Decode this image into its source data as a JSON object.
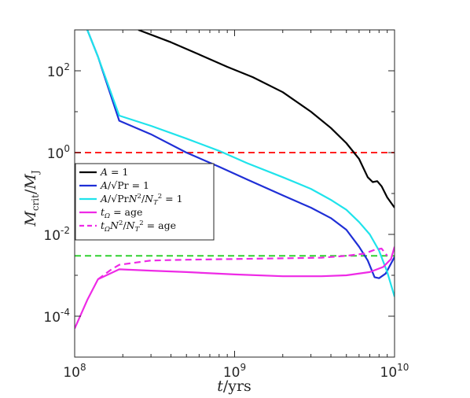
{
  "chart_data": {
    "type": "line",
    "title": "",
    "xlabel": "t/yrs",
    "ylabel": "M_crit/M_J",
    "xscale": "log",
    "yscale": "log",
    "xlim": [
      100000000,
      10000000000
    ],
    "ylim": [
      1e-05,
      1000
    ],
    "xticks": [
      {
        "value": 100000000,
        "base": "10",
        "exp": "8"
      },
      {
        "value": 1000000000,
        "base": "10",
        "exp": "9"
      },
      {
        "value": 10000000000,
        "base": "10",
        "exp": "10"
      }
    ],
    "yticks": [
      {
        "value": 0.0001,
        "base": "10",
        "exp": "-4"
      },
      {
        "value": 0.01,
        "base": "10",
        "exp": "-2"
      },
      {
        "value": 1,
        "base": "10",
        "exp": "0"
      },
      {
        "value": 100,
        "base": "10",
        "exp": "2"
      }
    ],
    "grid": false,
    "legend_position": "middle-left",
    "series": [
      {
        "name": "A = 1",
        "color": "#000000",
        "dash": false,
        "x": [
          250000000,
          400000000,
          600000000,
          900000000,
          1300000000,
          2000000000,
          3000000000,
          4000000000,
          5000000000,
          6000000000,
          6800000000,
          7300000000,
          7800000000,
          8300000000,
          9000000000,
          10000000000
        ],
        "y": [
          1000,
          500,
          250,
          125,
          70,
          30,
          10,
          4,
          1.7,
          0.7,
          0.25,
          0.19,
          0.2,
          0.15,
          0.08,
          0.045
        ]
      },
      {
        "name": "A/sqrt(Pr) = 1",
        "color": "#1f2fd6",
        "dash": false,
        "x": [
          120000000,
          140000000,
          190000000,
          300000000,
          500000000,
          800000000,
          1200000000,
          2000000000,
          3000000000,
          4000000000,
          5000000000,
          6000000000,
          6800000000,
          7500000000,
          8000000000,
          8800000000,
          10000000000
        ],
        "y": [
          1000,
          220,
          6,
          2.8,
          1.0,
          0.45,
          0.22,
          0.09,
          0.045,
          0.025,
          0.013,
          0.005,
          0.0023,
          0.0009,
          0.00085,
          0.0011,
          0.0028
        ]
      },
      {
        "name": "A/sqrt(Pr N^2/N_T^2) = 1",
        "color": "#1fe3eb",
        "dash": false,
        "x": [
          120000000,
          140000000,
          190000000,
          300000000,
          500000000,
          800000000,
          1200000000,
          2000000000,
          3000000000,
          4000000000,
          5000000000,
          6000000000,
          7000000000,
          8000000000,
          9000000000,
          10000000000
        ],
        "y": [
          1000,
          220,
          8,
          4.5,
          2.2,
          1.1,
          0.55,
          0.25,
          0.13,
          0.07,
          0.04,
          0.02,
          0.01,
          0.004,
          0.0012,
          0.0003
        ]
      },
      {
        "name": "t_Ω = age",
        "color": "#ee2ae6",
        "dash": false,
        "x": [
          100000000,
          120000000,
          140000000,
          190000000,
          300000000,
          500000000,
          1000000000,
          2000000000,
          3500000000,
          5000000000,
          7000000000,
          8500000000,
          9500000000,
          10000000000
        ],
        "y": [
          5e-05,
          0.00025,
          0.0008,
          0.0014,
          0.0013,
          0.0012,
          0.00105,
          0.00095,
          0.00095,
          0.001,
          0.0012,
          0.0016,
          0.0025,
          0.005
        ]
      },
      {
        "name": "t_Ω N^2/N_T^2 = age",
        "color": "#ee2ae6",
        "dash": true,
        "x": [
          140000000,
          170000000,
          190000000,
          300000000,
          500000000,
          1000000000,
          2000000000,
          3500000000,
          5000000000,
          6500000000,
          7500000000,
          8300000000,
          9000000000
        ],
        "y": [
          0.0008,
          0.0014,
          0.0018,
          0.0023,
          0.0024,
          0.0025,
          0.0026,
          0.0027,
          0.003,
          0.0034,
          0.0042,
          0.0045,
          0.003
        ]
      }
    ],
    "hlines": [
      {
        "y": 1,
        "color": "#ff2020",
        "dash": true
      },
      {
        "y": 0.003,
        "color": "#30d030",
        "dash": true
      }
    ]
  }
}
